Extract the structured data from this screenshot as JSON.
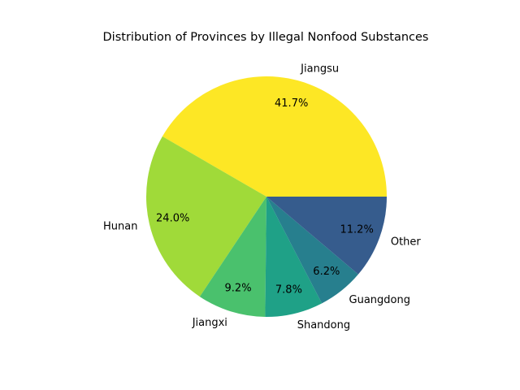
{
  "chart_data": {
    "type": "pie",
    "title": "Distribution of Provinces by Illegal Nonfood Substances",
    "slices": [
      {
        "label": "Jiangsu",
        "value": 41.7,
        "pct_label": "41.7%",
        "color": "#fde725"
      },
      {
        "label": "Hunan",
        "value": 24.0,
        "pct_label": "24.0%",
        "color": "#a0da39"
      },
      {
        "label": "Jiangxi",
        "value": 9.2,
        "pct_label": "9.2%",
        "color": "#4ac16d"
      },
      {
        "label": "Shandong",
        "value": 7.8,
        "pct_label": "7.8%",
        "color": "#1fa187"
      },
      {
        "label": "Guangdong",
        "value": 6.2,
        "pct_label": "6.2%",
        "color": "#277f8e"
      },
      {
        "label": "Other",
        "value": 11.2,
        "pct_label": "11.2%",
        "color": "#365c8d"
      }
    ],
    "start_angle_deg": 0,
    "direction": "counterclockwise",
    "legend": "none"
  }
}
